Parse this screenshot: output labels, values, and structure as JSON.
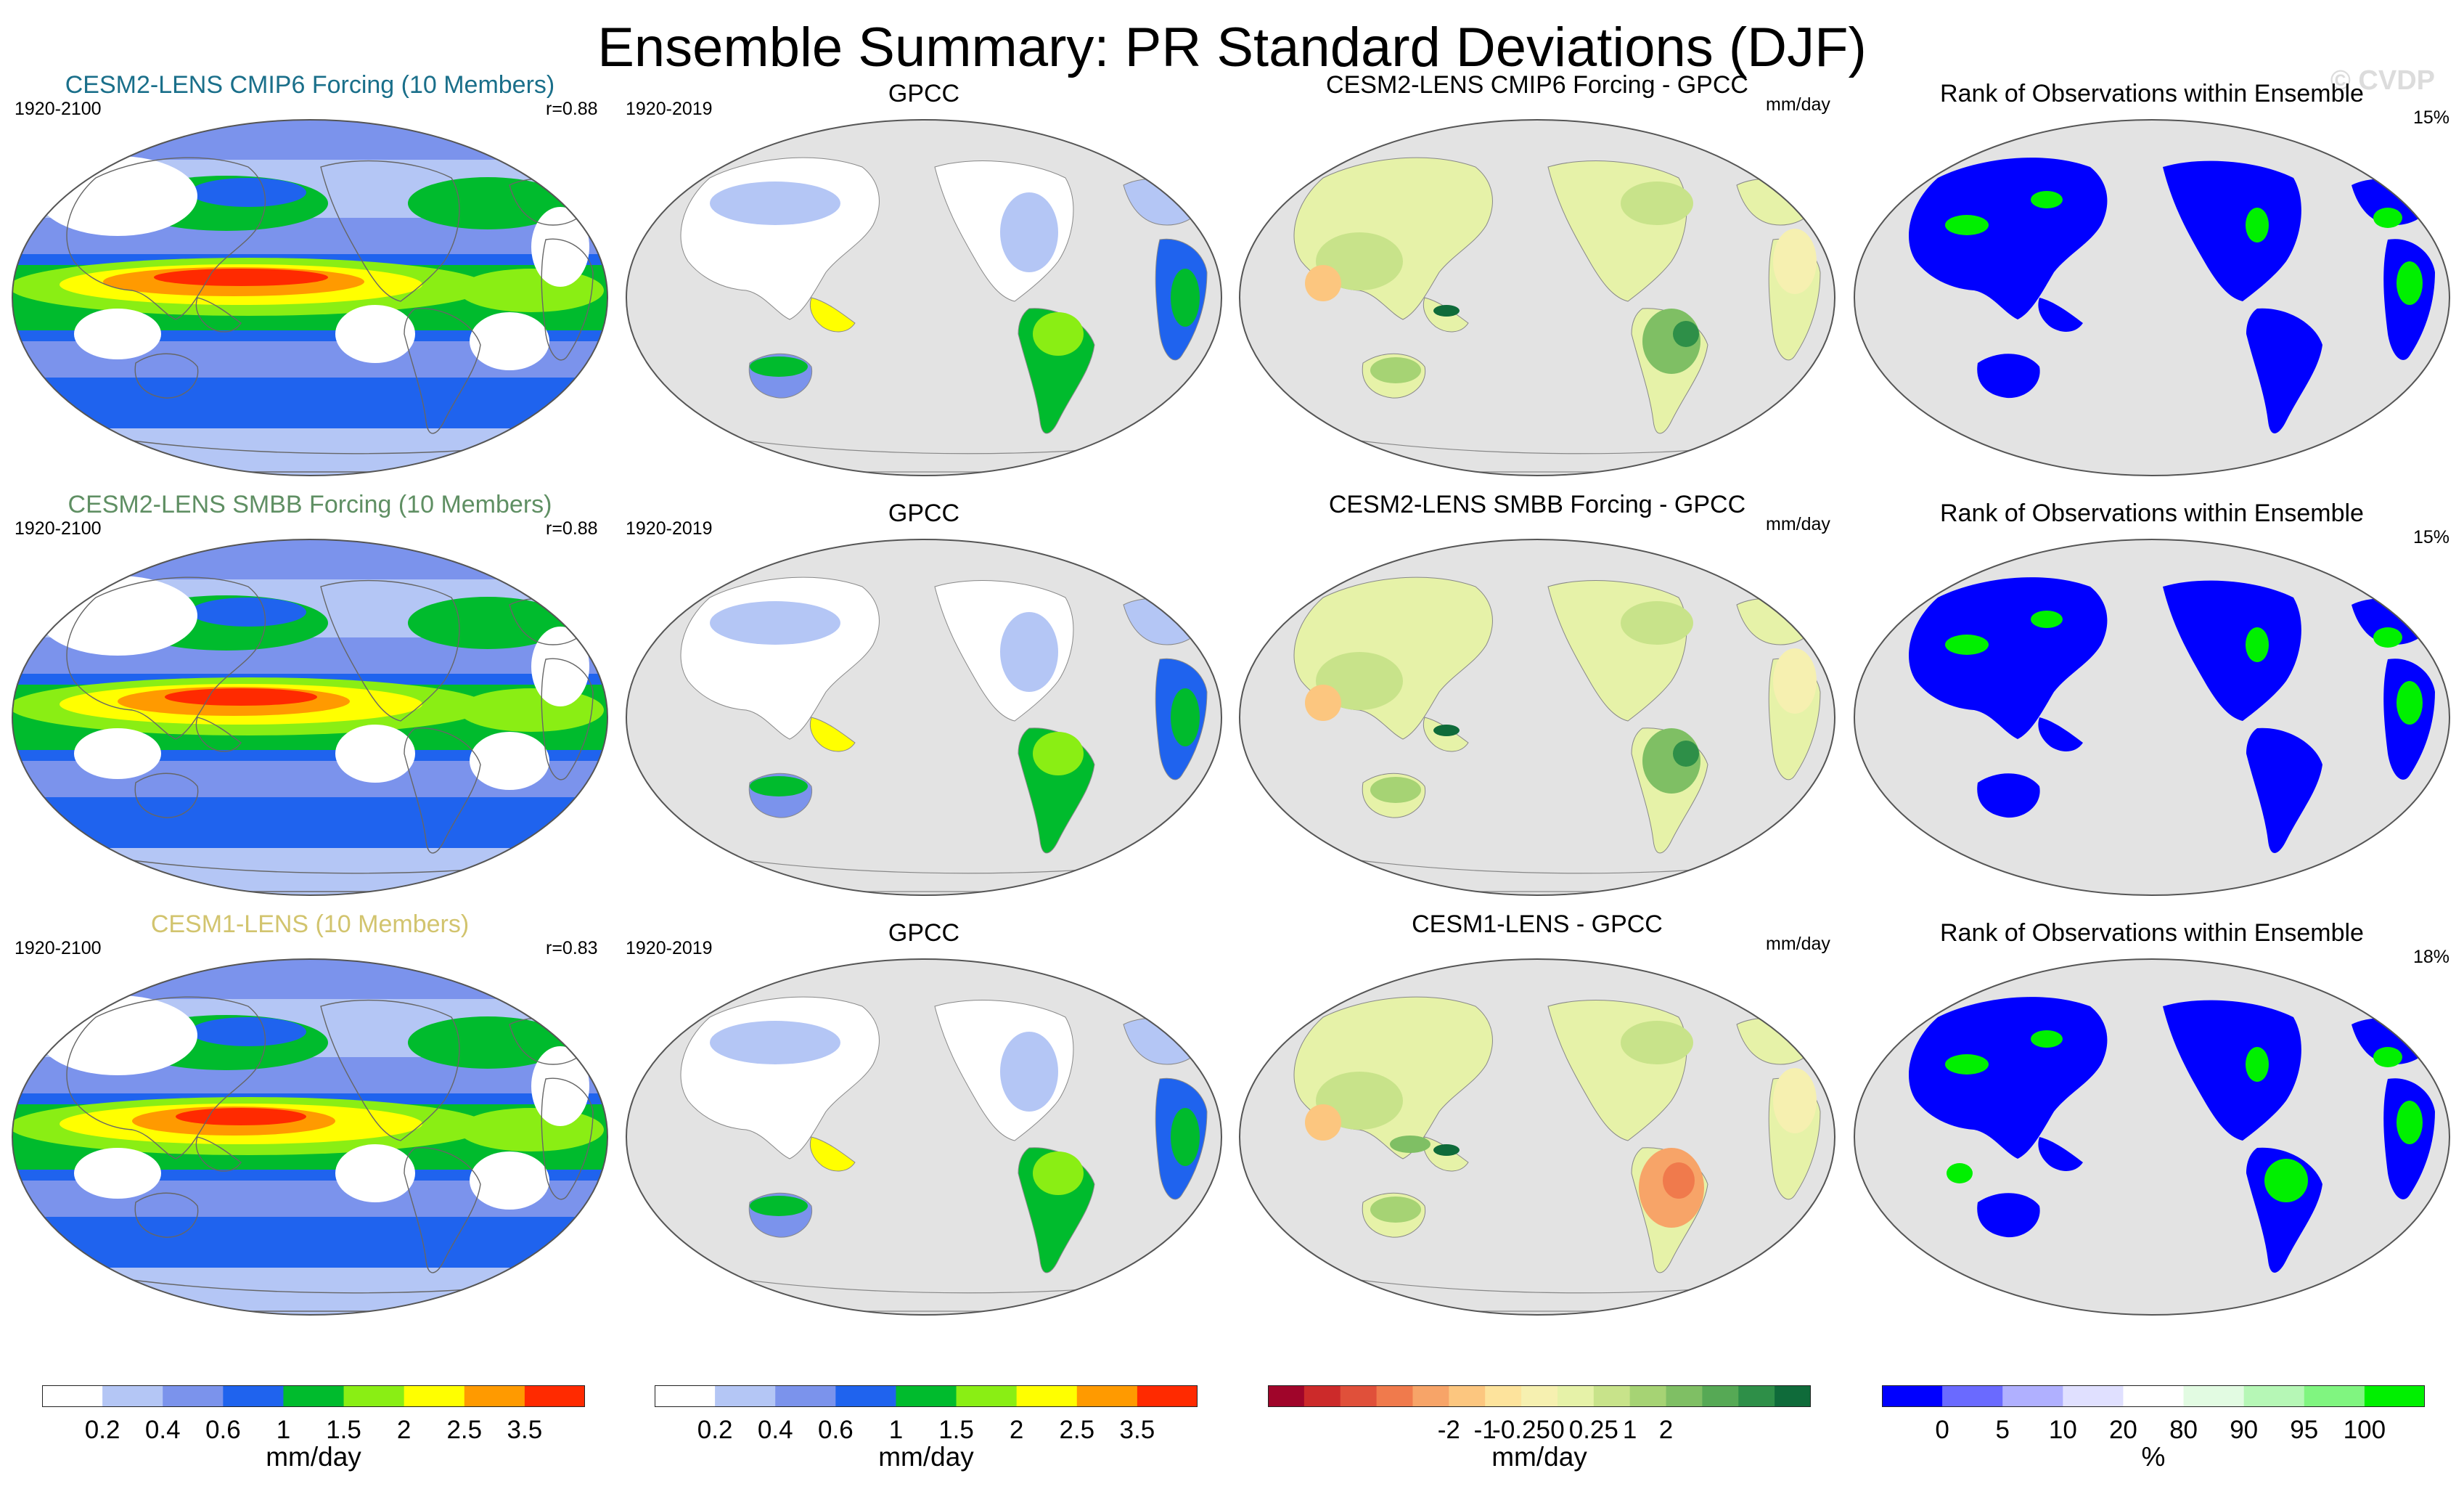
{
  "title": "Ensemble Summary: PR Standard Deviations (DJF)",
  "watermark": "© CVDP",
  "rows": [
    {
      "model": {
        "title": "CESM2-LENS CMIP6 Forcing (10 Members)",
        "title_color": "#1a6f8a",
        "period": "1920-2100",
        "corr": "r=0.88"
      },
      "obs": {
        "title": "GPCC",
        "period": "1920-2019"
      },
      "diff": {
        "title": "CESM2-LENS CMIP6 Forcing - GPCC",
        "units": "mm/day"
      },
      "rank": {
        "title": "Rank of Observations within Ensemble",
        "pct": "15%"
      }
    },
    {
      "model": {
        "title": "CESM2-LENS SMBB Forcing (10 Members)",
        "title_color": "#5f8f63",
        "period": "1920-2100",
        "corr": "r=0.88"
      },
      "obs": {
        "title": "GPCC",
        "period": "1920-2019"
      },
      "diff": {
        "title": "CESM2-LENS SMBB Forcing - GPCC",
        "units": "mm/day"
      },
      "rank": {
        "title": "Rank of Observations within Ensemble",
        "pct": "15%"
      }
    },
    {
      "model": {
        "title": "CESM1-LENS (10 Members)",
        "title_color": "#d2c46e",
        "period": "1920-2100",
        "corr": "r=0.83"
      },
      "obs": {
        "title": "GPCC",
        "period": "1920-2019"
      },
      "diff": {
        "title": "CESM1-LENS - GPCC",
        "units": "mm/day"
      },
      "rank": {
        "title": "Rank of Observations within Ensemble",
        "pct": "18%"
      }
    }
  ],
  "colorbars": {
    "std": {
      "colors": [
        "#ffffff",
        "#b4c6f5",
        "#7b93ec",
        "#1f63ee",
        "#00bb2d",
        "#8aee14",
        "#ffff00",
        "#ff9a00",
        "#ff2a00"
      ],
      "labels": [
        "0.2",
        "0.4",
        "0.6",
        "1",
        "1.5",
        "2",
        "2.5",
        "3.5"
      ],
      "units": "mm/day"
    },
    "std2": {
      "colors": [
        "#ffffff",
        "#b4c6f5",
        "#7b93ec",
        "#1f63ee",
        "#00bb2d",
        "#8aee14",
        "#ffff00",
        "#ff9a00",
        "#ff2a00"
      ],
      "labels": [
        "0.2",
        "0.4",
        "0.6",
        "1",
        "1.5",
        "2",
        "2.5",
        "3.5"
      ],
      "units": "mm/day"
    },
    "diff": {
      "colors": [
        "#a0052a",
        "#cc2a2a",
        "#e0503a",
        "#f07a4c",
        "#f7a468",
        "#fcc67f",
        "#fde39c",
        "#f6f0b0",
        "#e6f2a8",
        "#c8e38a",
        "#a6d374",
        "#7fbf64",
        "#56a955",
        "#2e8f48",
        "#0f6b3a"
      ],
      "labels": [
        "-2",
        "-1",
        "-0.25",
        "0",
        "0.25",
        "1",
        "2"
      ],
      "units": "mm/day"
    },
    "rank": {
      "colors": [
        "#0000ff",
        "#6a6aff",
        "#b0b0ff",
        "#e0e0ff",
        "#ffffff",
        "#e2fbe2",
        "#b6f7b6",
        "#80f580",
        "#00f000"
      ],
      "labels": [
        "0",
        "5",
        "10",
        "20",
        "80",
        "90",
        "95",
        "100"
      ],
      "units": "%"
    }
  }
}
